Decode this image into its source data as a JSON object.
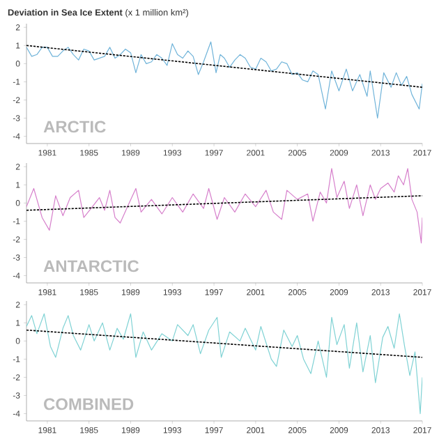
{
  "chart_data": [
    {
      "type": "line",
      "title": "**Deviation in Sea Ice Extent** (x 1 million km²)",
      "annotations": [
        "ARCTIC"
      ],
      "xlim": [
        1979,
        2017
      ],
      "xticks": [
        1981,
        1985,
        1989,
        1993,
        1997,
        2001,
        2005,
        2009,
        2013,
        2017
      ],
      "ylim": [
        -4.4,
        2.2
      ],
      "yticks": [
        -4,
        -3,
        -2,
        -1,
        0,
        1,
        2
      ],
      "series": [
        {
          "color": "#6fb3d9",
          "x": [
            1979,
            1979.5,
            1980,
            1980.5,
            1981,
            1981.5,
            1982,
            1982.5,
            1983,
            1983.5,
            1984,
            1984.5,
            1985,
            1985.5,
            1986,
            1986.5,
            1987,
            1987.5,
            1988,
            1988.5,
            1989,
            1989.5,
            1990,
            1990.5,
            1991,
            1991.5,
            1992,
            1992.5,
            1993,
            1993.5,
            1994,
            1994.5,
            1995,
            1995.5,
            1996,
            1996.7,
            1997.2,
            1997.6,
            1998,
            1998.5,
            1999,
            1999.5,
            2000,
            2000.5,
            2001,
            2001.5,
            2002,
            2002.5,
            2003,
            2003.5,
            2004,
            2004.5,
            2005,
            2005.5,
            2006,
            2006.5,
            2007,
            2007.7,
            2008.3,
            2009,
            2009.7,
            2010.3,
            2011,
            2011.7,
            2012,
            2012.7,
            2013.3,
            2014,
            2014.5,
            2015,
            2015.5,
            2016,
            2016.7,
            2017
          ],
          "values": [
            0.9,
            0.4,
            0.5,
            0.9,
            0.9,
            0.4,
            0.4,
            0.7,
            0.9,
            0.5,
            0.2,
            0.8,
            0.7,
            0.2,
            0.3,
            0.4,
            0.9,
            0.3,
            0.5,
            0.8,
            0.6,
            -0.5,
            0.5,
            0.0,
            0.1,
            0.5,
            0.3,
            -0.1,
            1.1,
            0.5,
            0.3,
            0.7,
            0.4,
            -0.6,
            0.1,
            1.2,
            -0.5,
            0.5,
            0.3,
            -0.2,
            0.2,
            0.5,
            0.3,
            -0.2,
            -0.3,
            0.3,
            0.1,
            -0.4,
            -0.3,
            0.1,
            0.0,
            -0.6,
            -0.5,
            -0.9,
            -1.0,
            -0.4,
            -0.6,
            -2.5,
            -0.4,
            -1.5,
            -0.3,
            -1.5,
            -0.6,
            -1.8,
            -0.4,
            -3.0,
            -0.5,
            -1.3,
            -0.5,
            -1.2,
            -0.7,
            -1.7,
            -2.5,
            -1.1
          ]
        },
        {
          "type": "line",
          "color": "#000000",
          "line_style": "dashed",
          "x": [
            1979,
            2017
          ],
          "values": [
            1.0,
            -1.3
          ]
        }
      ]
    },
    {
      "type": "line",
      "annotations": [
        "ANTARCTIC"
      ],
      "xlim": [
        1979,
        2017
      ],
      "xticks": [
        1981,
        1985,
        1989,
        1993,
        1997,
        2001,
        2005,
        2009,
        2013,
        2017
      ],
      "ylim": [
        -4.4,
        2.2
      ],
      "yticks": [
        -4,
        -3,
        -2,
        -1,
        0,
        1,
        2
      ],
      "series": [
        {
          "color": "#d67fcb",
          "x": [
            1979,
            1979.7,
            1980.5,
            1981.2,
            1981.8,
            1982.5,
            1983.2,
            1984,
            1984.5,
            1985.2,
            1986,
            1986.5,
            1987,
            1987.5,
            1988,
            1988.7,
            1989.5,
            1990,
            1991,
            1992,
            1993,
            1994,
            1995,
            1996,
            1996.5,
            1997.3,
            1998,
            1999,
            2000,
            2001,
            2002,
            2002.7,
            2003.5,
            2004,
            2005,
            2006,
            2006.5,
            2007.2,
            2007.8,
            2008.3,
            2008.8,
            2009.5,
            2010,
            2010.7,
            2011.3,
            2012,
            2012.5,
            2013,
            2013.7,
            2014.3,
            2014.7,
            2015.2,
            2015.6,
            2016,
            2016.5,
            2016.9,
            2017
          ],
          "values": [
            -0.2,
            0.8,
            -0.8,
            -1.5,
            0.4,
            -0.7,
            0.3,
            0.7,
            -0.8,
            -0.3,
            0.3,
            -0.4,
            0.7,
            -0.8,
            -1.1,
            -0.2,
            0.8,
            -0.5,
            0.2,
            -0.6,
            0.3,
            -0.5,
            0.5,
            -0.3,
            0.8,
            -0.9,
            0.3,
            -0.5,
            0.5,
            -0.2,
            0.7,
            -0.5,
            -0.9,
            0.7,
            0.2,
            0.5,
            -1.0,
            0.6,
            0.0,
            1.9,
            0.3,
            1.2,
            -0.3,
            1.0,
            -0.7,
            1.0,
            0.2,
            0.8,
            1.1,
            0.6,
            1.5,
            1.0,
            1.9,
            0.2,
            -0.5,
            -2.2,
            -0.8
          ]
        },
        {
          "type": "line",
          "color": "#000000",
          "line_style": "dashed",
          "x": [
            1979,
            2017
          ],
          "values": [
            -0.4,
            0.4
          ]
        }
      ]
    },
    {
      "type": "line",
      "annotations": [
        "COMBINED"
      ],
      "xlim": [
        1979,
        2017
      ],
      "xticks": [
        1981,
        1985,
        1989,
        1993,
        1997,
        2001,
        2005,
        2009,
        2013,
        2017
      ],
      "ylim": [
        -4.4,
        2.2
      ],
      "yticks": [
        -4,
        -3,
        -2,
        -1,
        0,
        1,
        2
      ],
      "series": [
        {
          "color": "#7fd2d4",
          "x": [
            1979,
            1979.5,
            1980,
            1980.7,
            1981.3,
            1981.8,
            1982.5,
            1983,
            1983.5,
            1984.2,
            1985,
            1985.5,
            1986.3,
            1987,
            1987.7,
            1988.3,
            1989,
            1989.5,
            1990.2,
            1991,
            1992,
            1993,
            1993.5,
            1994.5,
            1995,
            1995.7,
            1996.5,
            1997.3,
            1997.7,
            1998.5,
            1999.5,
            2000,
            2001,
            2001.5,
            2002.5,
            2003,
            2003.7,
            2004.5,
            2005,
            2005.6,
            2006.3,
            2007,
            2007.8,
            2008.3,
            2008.8,
            2009.5,
            2010,
            2010.7,
            2011.3,
            2012,
            2012.5,
            2013.2,
            2013.7,
            2014.3,
            2014.8,
            2015.3,
            2015.8,
            2016.3,
            2016.8,
            2017
          ],
          "values": [
            0.8,
            1.4,
            0.4,
            1.5,
            -0.3,
            -0.9,
            0.7,
            1.4,
            0.3,
            -0.5,
            0.9,
            0.0,
            1.0,
            -0.5,
            0.7,
            0.1,
            1.5,
            -0.9,
            0.5,
            -0.5,
            0.4,
            0.0,
            0.9,
            0.3,
            0.9,
            -0.7,
            0.6,
            1.3,
            -0.9,
            0.5,
            0.0,
            0.7,
            -0.5,
            0.8,
            -1.0,
            -1.4,
            0.6,
            -0.3,
            0.3,
            -1.0,
            -1.8,
            0.0,
            -2.0,
            1.3,
            -0.2,
            0.9,
            -1.5,
            1.0,
            -1.7,
            0.3,
            -2.3,
            0.2,
            0.8,
            -0.4,
            1.5,
            -0.3,
            -1.9,
            -0.6,
            -4.0,
            -2.0
          ]
        },
        {
          "type": "line",
          "color": "#000000",
          "line_style": "dashed",
          "x": [
            1979,
            2017
          ],
          "values": [
            0.6,
            -0.9
          ]
        }
      ]
    }
  ]
}
